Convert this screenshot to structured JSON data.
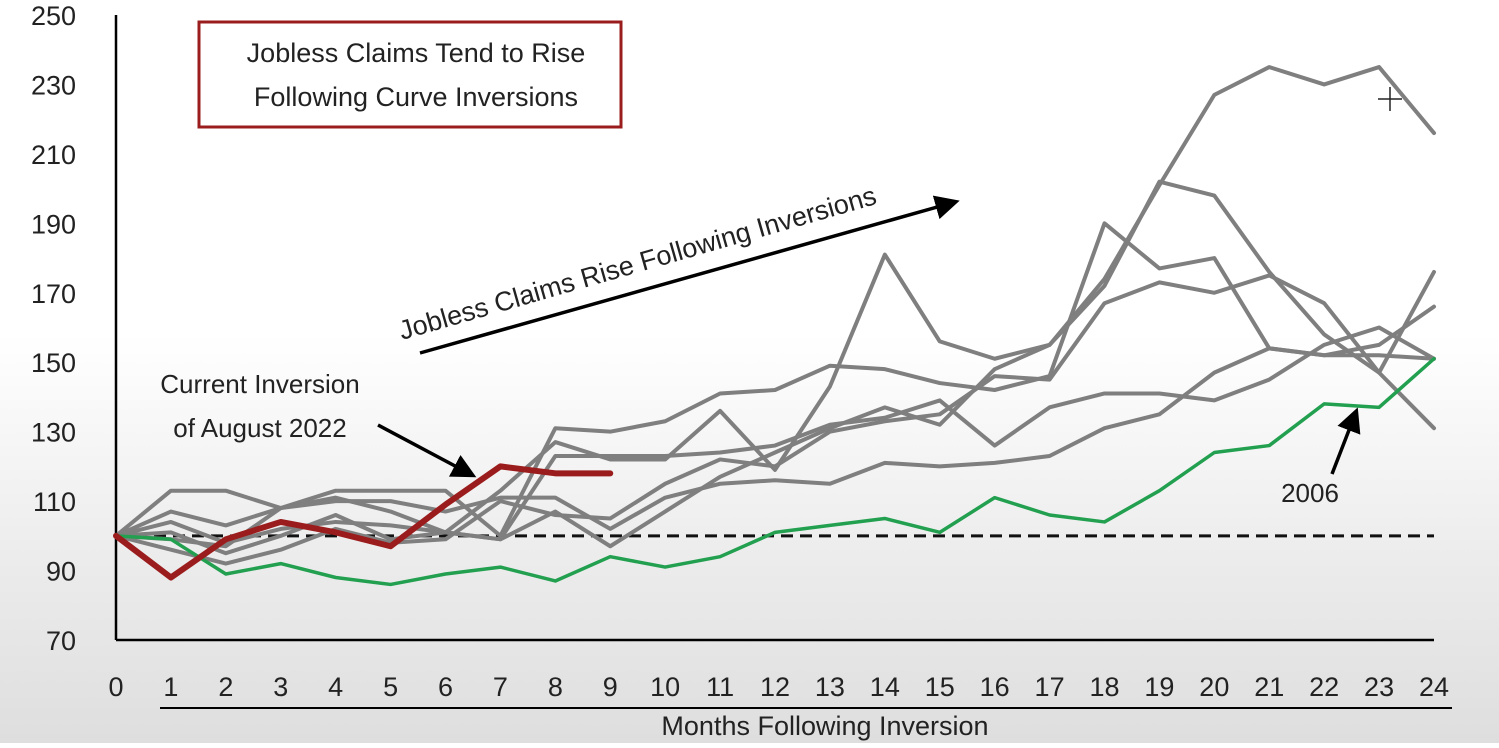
{
  "chart_data": {
    "type": "line",
    "title": "Jobless Claims Tend to Rise Following Curve Inversions",
    "title_lines": [
      "Jobless Claims Tend to Rise",
      "Following Curve Inversions"
    ],
    "xlabel": "Months Following Inversion",
    "ylabel": "",
    "xlim": [
      0,
      24
    ],
    "ylim": [
      70,
      250
    ],
    "yticks": [
      70,
      90,
      110,
      130,
      150,
      170,
      190,
      210,
      230,
      250
    ],
    "xticks": [
      0,
      1,
      2,
      3,
      4,
      5,
      6,
      7,
      8,
      9,
      10,
      11,
      12,
      13,
      14,
      15,
      16,
      17,
      18,
      19,
      20,
      21,
      22,
      23,
      24
    ],
    "grid": false,
    "reference_line": {
      "y": 100,
      "style": "dashed",
      "color": "#111111"
    },
    "colors": {
      "historical": "#7f7f7f",
      "current": "#9b1c1c",
      "y2006": "#22a050",
      "title_border": "#9b1c1c"
    },
    "annotations": {
      "trend": "Jobless Claims Rise Following Inversions",
      "current_lines": [
        "Current Inversion",
        "of August 2022"
      ],
      "y2006": "2006"
    },
    "series": [
      {
        "color": "#7f7f7f",
        "x": [
          0,
          1,
          2,
          3,
          4,
          5,
          6,
          7,
          8,
          9,
          10,
          11,
          12,
          13,
          14,
          15,
          16,
          17,
          18,
          19,
          20,
          21,
          22,
          23,
          24
        ],
        "values": [
          100,
          113,
          113,
          108,
          113,
          113,
          113,
          100,
          131,
          130,
          133,
          141,
          142,
          149,
          148,
          144,
          142,
          146,
          190,
          177,
          180,
          154,
          152,
          152,
          151
        ]
      },
      {
        "color": "#7f7f7f",
        "x": [
          0,
          1,
          2,
          3,
          4,
          5,
          6,
          7,
          8,
          9,
          10,
          11,
          12,
          13,
          14,
          15,
          16,
          17,
          18,
          19,
          20,
          21,
          22,
          23,
          24
        ],
        "values": [
          100,
          107,
          103,
          108,
          111,
          107,
          101,
          113,
          127,
          122,
          122,
          136,
          119,
          143,
          181,
          156,
          151,
          155,
          172,
          202,
          198,
          176,
          158,
          147,
          131
        ]
      },
      {
        "color": "#7f7f7f",
        "x": [
          0,
          1,
          2,
          3,
          4,
          5,
          6,
          7,
          8,
          9,
          10,
          11,
          12,
          13,
          14,
          15,
          16,
          17,
          18,
          19,
          20,
          21,
          22,
          23,
          24
        ],
        "values": [
          100,
          101,
          95,
          100,
          106,
          99,
          101,
          99,
          107,
          97,
          107,
          117,
          124,
          131,
          137,
          132,
          148,
          155,
          174,
          201,
          227,
          235,
          230,
          235,
          216
        ]
      },
      {
        "color": "#7f7f7f",
        "x": [
          0,
          1,
          2,
          3,
          4,
          5,
          6,
          7,
          8,
          9,
          10,
          11,
          12,
          13,
          14,
          15,
          16,
          17,
          18,
          19,
          20,
          21,
          22,
          23,
          24
        ],
        "values": [
          100,
          104,
          98,
          102,
          104,
          103,
          101,
          99,
          123,
          123,
          123,
          124,
          126,
          132,
          134,
          139,
          126,
          137,
          141,
          141,
          139,
          145,
          155,
          160,
          151
        ]
      },
      {
        "color": "#7f7f7f",
        "x": [
          0,
          1,
          2,
          3,
          4,
          5,
          6,
          7,
          8,
          9,
          10,
          11,
          12,
          13,
          14,
          15,
          16,
          17,
          18,
          19,
          20,
          21,
          22,
          23,
          24
        ],
        "values": [
          100,
          96,
          92,
          96,
          102,
          98,
          99,
          110,
          106,
          105,
          115,
          122,
          120,
          130,
          133,
          135,
          146,
          145,
          167,
          173,
          170,
          175,
          167,
          147,
          176
        ]
      },
      {
        "color": "#7f7f7f",
        "x": [
          0,
          1,
          2,
          3,
          4,
          5,
          6,
          7,
          8,
          9,
          10,
          11,
          12,
          13,
          14,
          15,
          16,
          17,
          18,
          19,
          20,
          21,
          22,
          23,
          24
        ],
        "values": [
          100,
          99,
          97,
          108,
          110,
          110,
          107,
          111,
          111,
          102,
          111,
          115,
          116,
          115,
          121,
          120,
          121,
          123,
          131,
          135,
          147,
          154,
          152,
          155,
          166
        ]
      },
      {
        "name": "2006",
        "color": "#22a050",
        "x": [
          0,
          1,
          2,
          3,
          4,
          5,
          6,
          7,
          8,
          9,
          10,
          11,
          12,
          13,
          14,
          15,
          16,
          17,
          18,
          19,
          20,
          21,
          22,
          23,
          24
        ],
        "values": [
          100,
          99,
          89,
          92,
          88,
          86,
          89,
          91,
          87,
          94,
          91,
          94,
          101,
          103,
          105,
          101,
          111,
          106,
          104,
          113,
          124,
          126,
          138,
          137,
          151
        ]
      },
      {
        "name": "Current Inversion of August 2022",
        "color": "#9b1c1c",
        "x": [
          0,
          1,
          2,
          3,
          4,
          5,
          6,
          7,
          8,
          9
        ],
        "values": [
          100,
          88,
          99,
          104,
          101,
          97,
          109,
          120,
          118,
          118
        ]
      }
    ]
  }
}
